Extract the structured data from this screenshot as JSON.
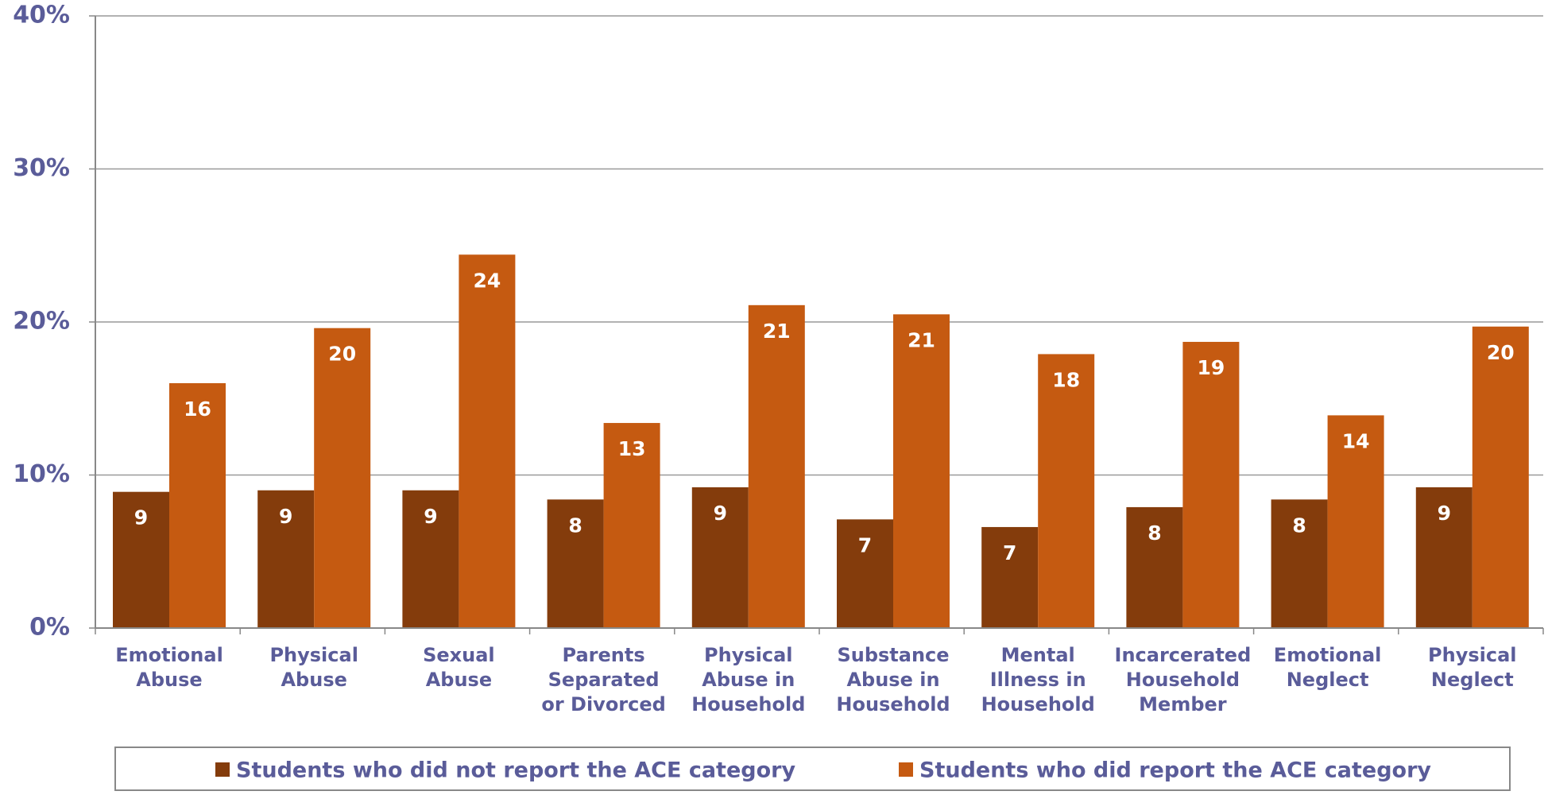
{
  "chart_data": {
    "type": "bar",
    "categories": [
      [
        "Emotional",
        "Abuse"
      ],
      [
        "Physical",
        "Abuse"
      ],
      [
        "Sexual",
        "Abuse"
      ],
      [
        "Parents",
        "Separated",
        "or Divorced"
      ],
      [
        "Physical",
        "Abuse in",
        "Household"
      ],
      [
        "Substance",
        "Abuse in",
        "Household"
      ],
      [
        "Mental",
        "Illness in",
        "Household"
      ],
      [
        "Incarcerated",
        "Household",
        "Member"
      ],
      [
        "Emotional",
        "Neglect"
      ],
      [
        "Physical",
        "Neglect"
      ]
    ],
    "series": [
      {
        "name": "Students who did not report the ACE category",
        "color": "#843c0c",
        "values": [
          8.9,
          9.0,
          9.0,
          8.4,
          9.2,
          7.1,
          6.6,
          7.9,
          8.4,
          9.2
        ],
        "value_labels": [
          "9",
          "9",
          "9",
          "8",
          "9",
          "7",
          "7",
          "8",
          "8",
          "9"
        ]
      },
      {
        "name": "Students who did report the ACE category",
        "color": "#c55a11",
        "values": [
          16.0,
          19.6,
          24.4,
          13.4,
          21.1,
          20.5,
          17.9,
          18.7,
          13.9,
          19.7
        ],
        "value_labels": [
          "16",
          "20",
          "24",
          "13",
          "21",
          "21",
          "18",
          "19",
          "14",
          "20"
        ]
      }
    ],
    "ylim": [
      0,
      40
    ],
    "yticks": [
      {
        "value": 0,
        "label": "0%"
      },
      {
        "value": 10,
        "label": "10%"
      },
      {
        "value": 20,
        "label": "20%"
      },
      {
        "value": 30,
        "label": "30%"
      },
      {
        "value": 40,
        "label": "40%"
      }
    ],
    "grid": true,
    "legend": "bottom"
  }
}
